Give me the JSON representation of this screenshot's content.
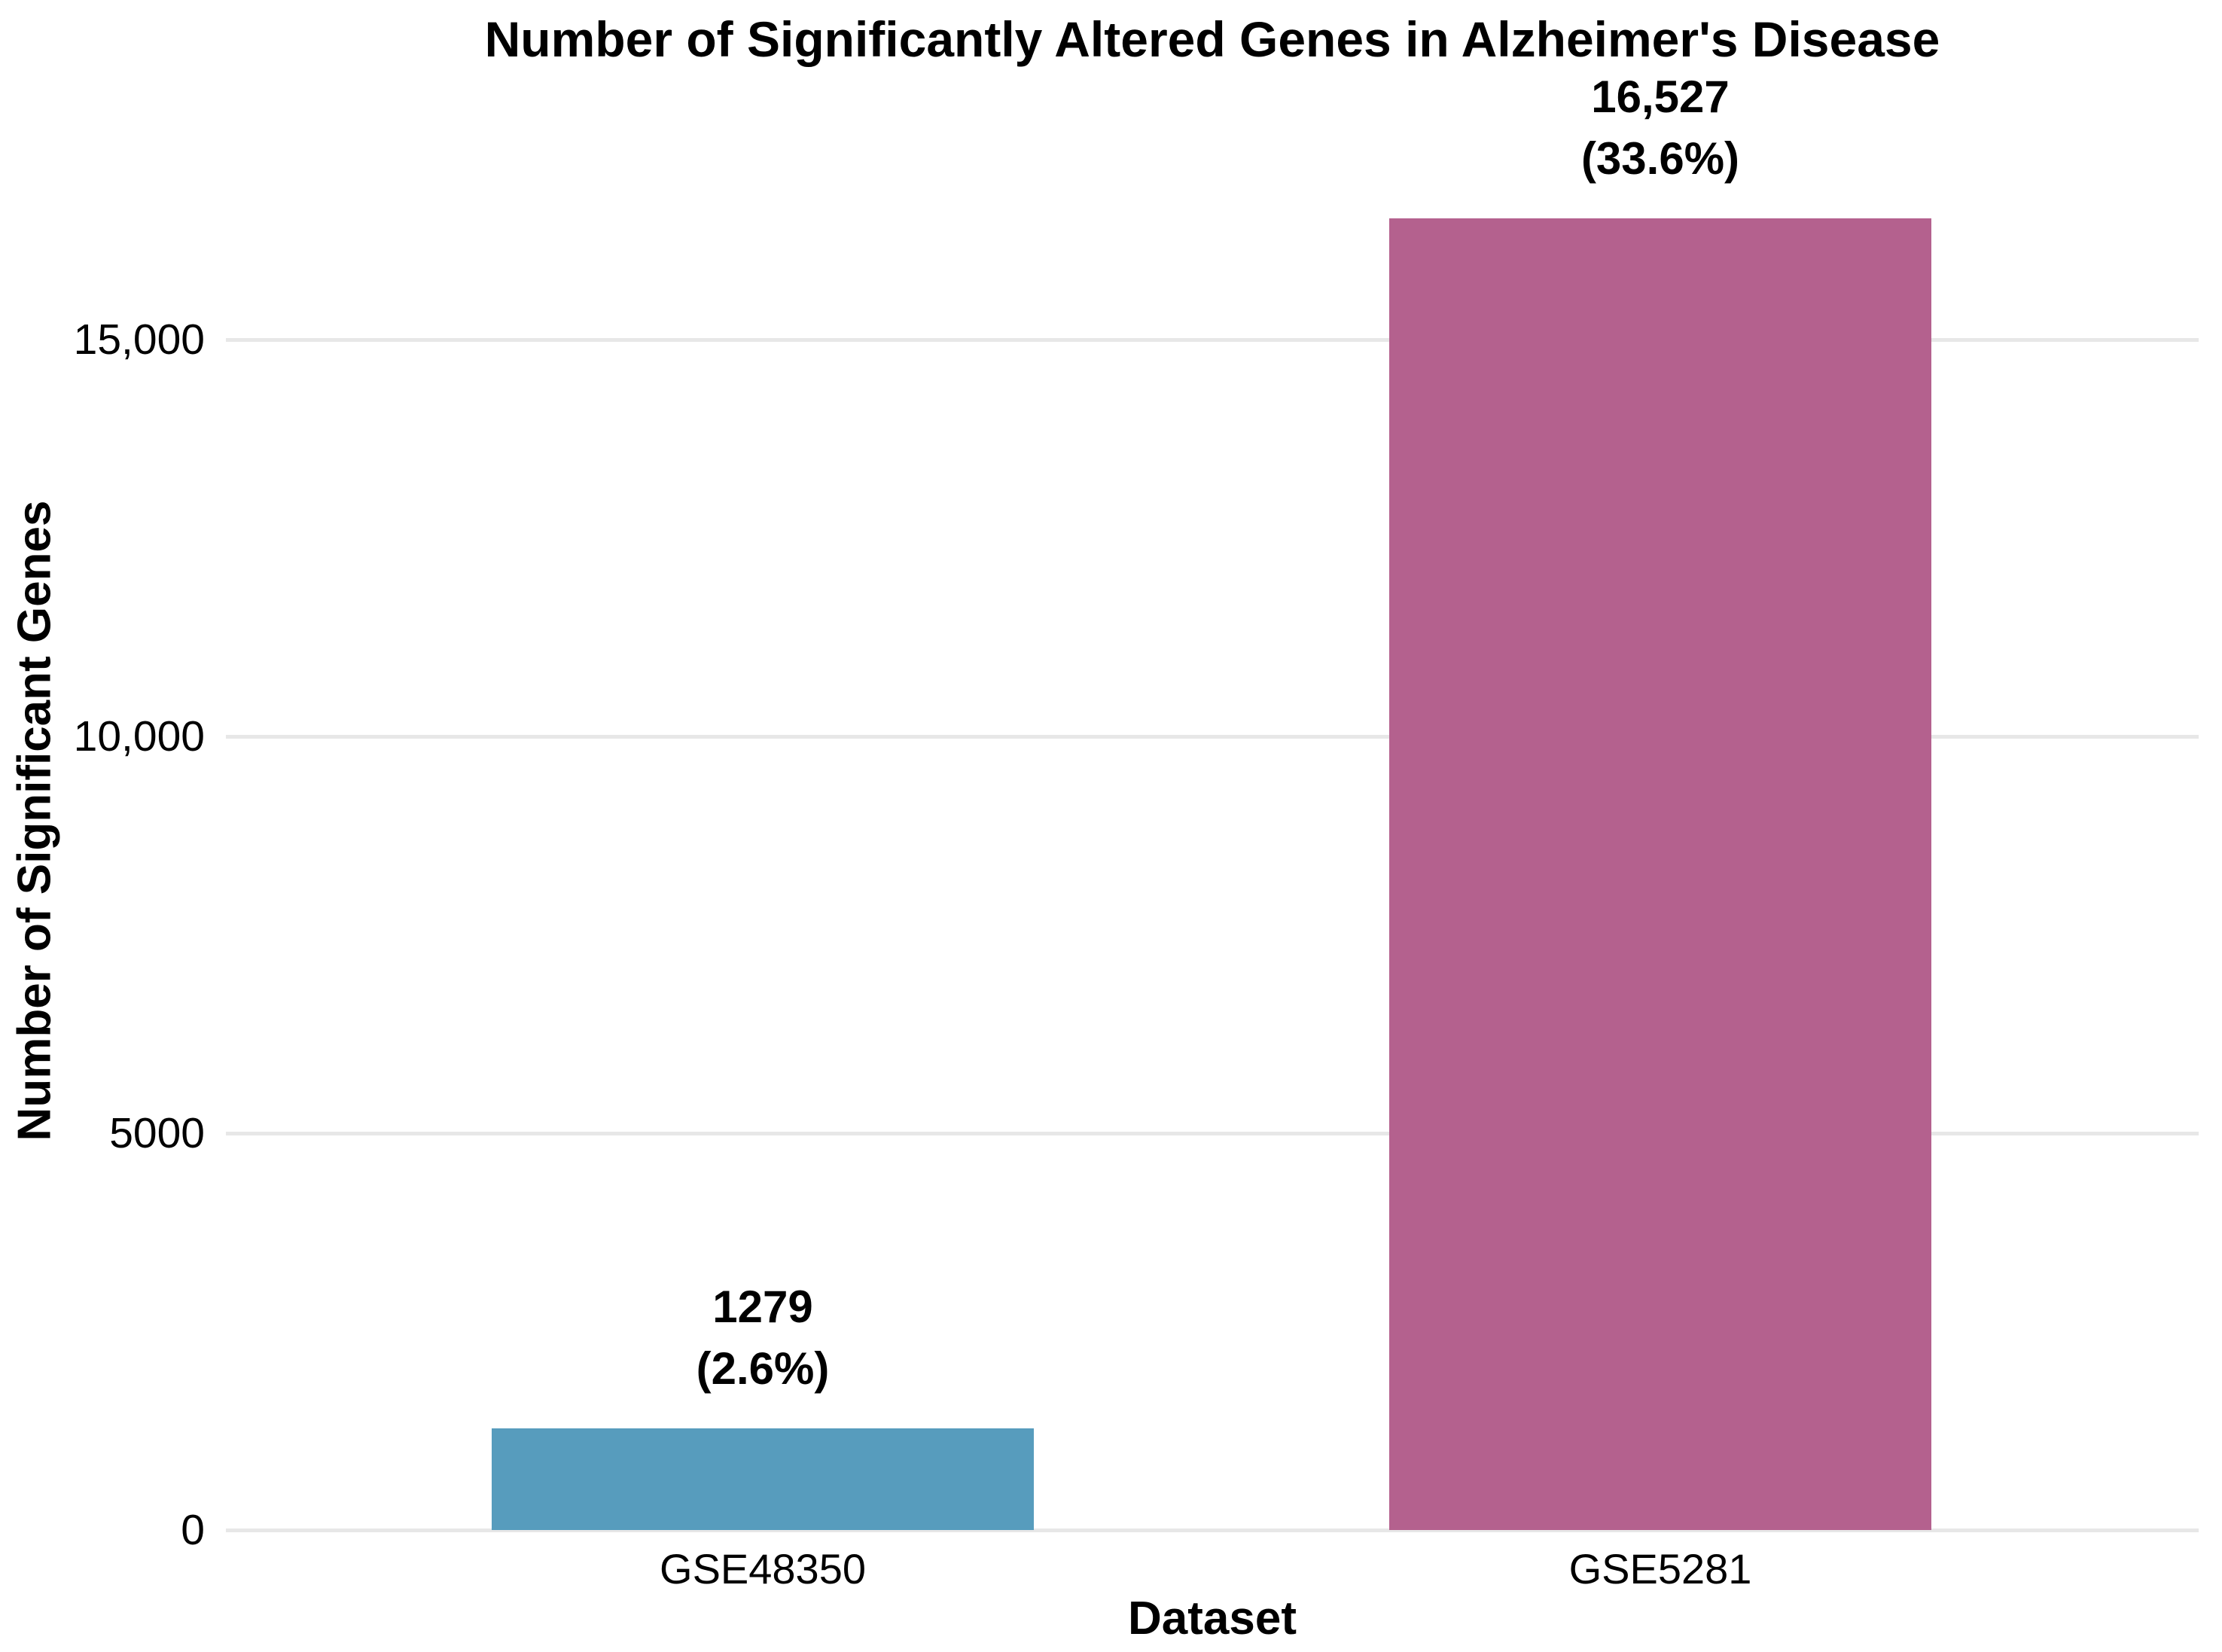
{
  "chart_data": {
    "type": "bar",
    "title": "Number of Significantly Altered Genes in Alzheimer's Disease",
    "xlabel": "Dataset",
    "ylabel": "Number of Significant Genes",
    "categories": [
      "GSE48350",
      "GSE5281"
    ],
    "values": [
      1279,
      16527
    ],
    "series": [
      {
        "name": "GSE48350",
        "value": 1279,
        "value_label": "1279",
        "percent_label": "(2.6%)",
        "color": "#579cbd"
      },
      {
        "name": "GSE5281",
        "value": 16527,
        "value_label": "16,527",
        "percent_label": "(33.6%)",
        "color": "#b4618e"
      }
    ],
    "yticks": [
      {
        "value": 0,
        "label": "0"
      },
      {
        "value": 5000,
        "label": "5000"
      },
      {
        "value": 10000,
        "label": "10,000"
      },
      {
        "value": 15000,
        "label": "15,000"
      }
    ],
    "ylim": [
      0,
      17500
    ],
    "grid": true,
    "legend_position": "none",
    "background_color": "#ffffff",
    "gridline_color": "#e7e7e7",
    "text_color": "#000000"
  }
}
